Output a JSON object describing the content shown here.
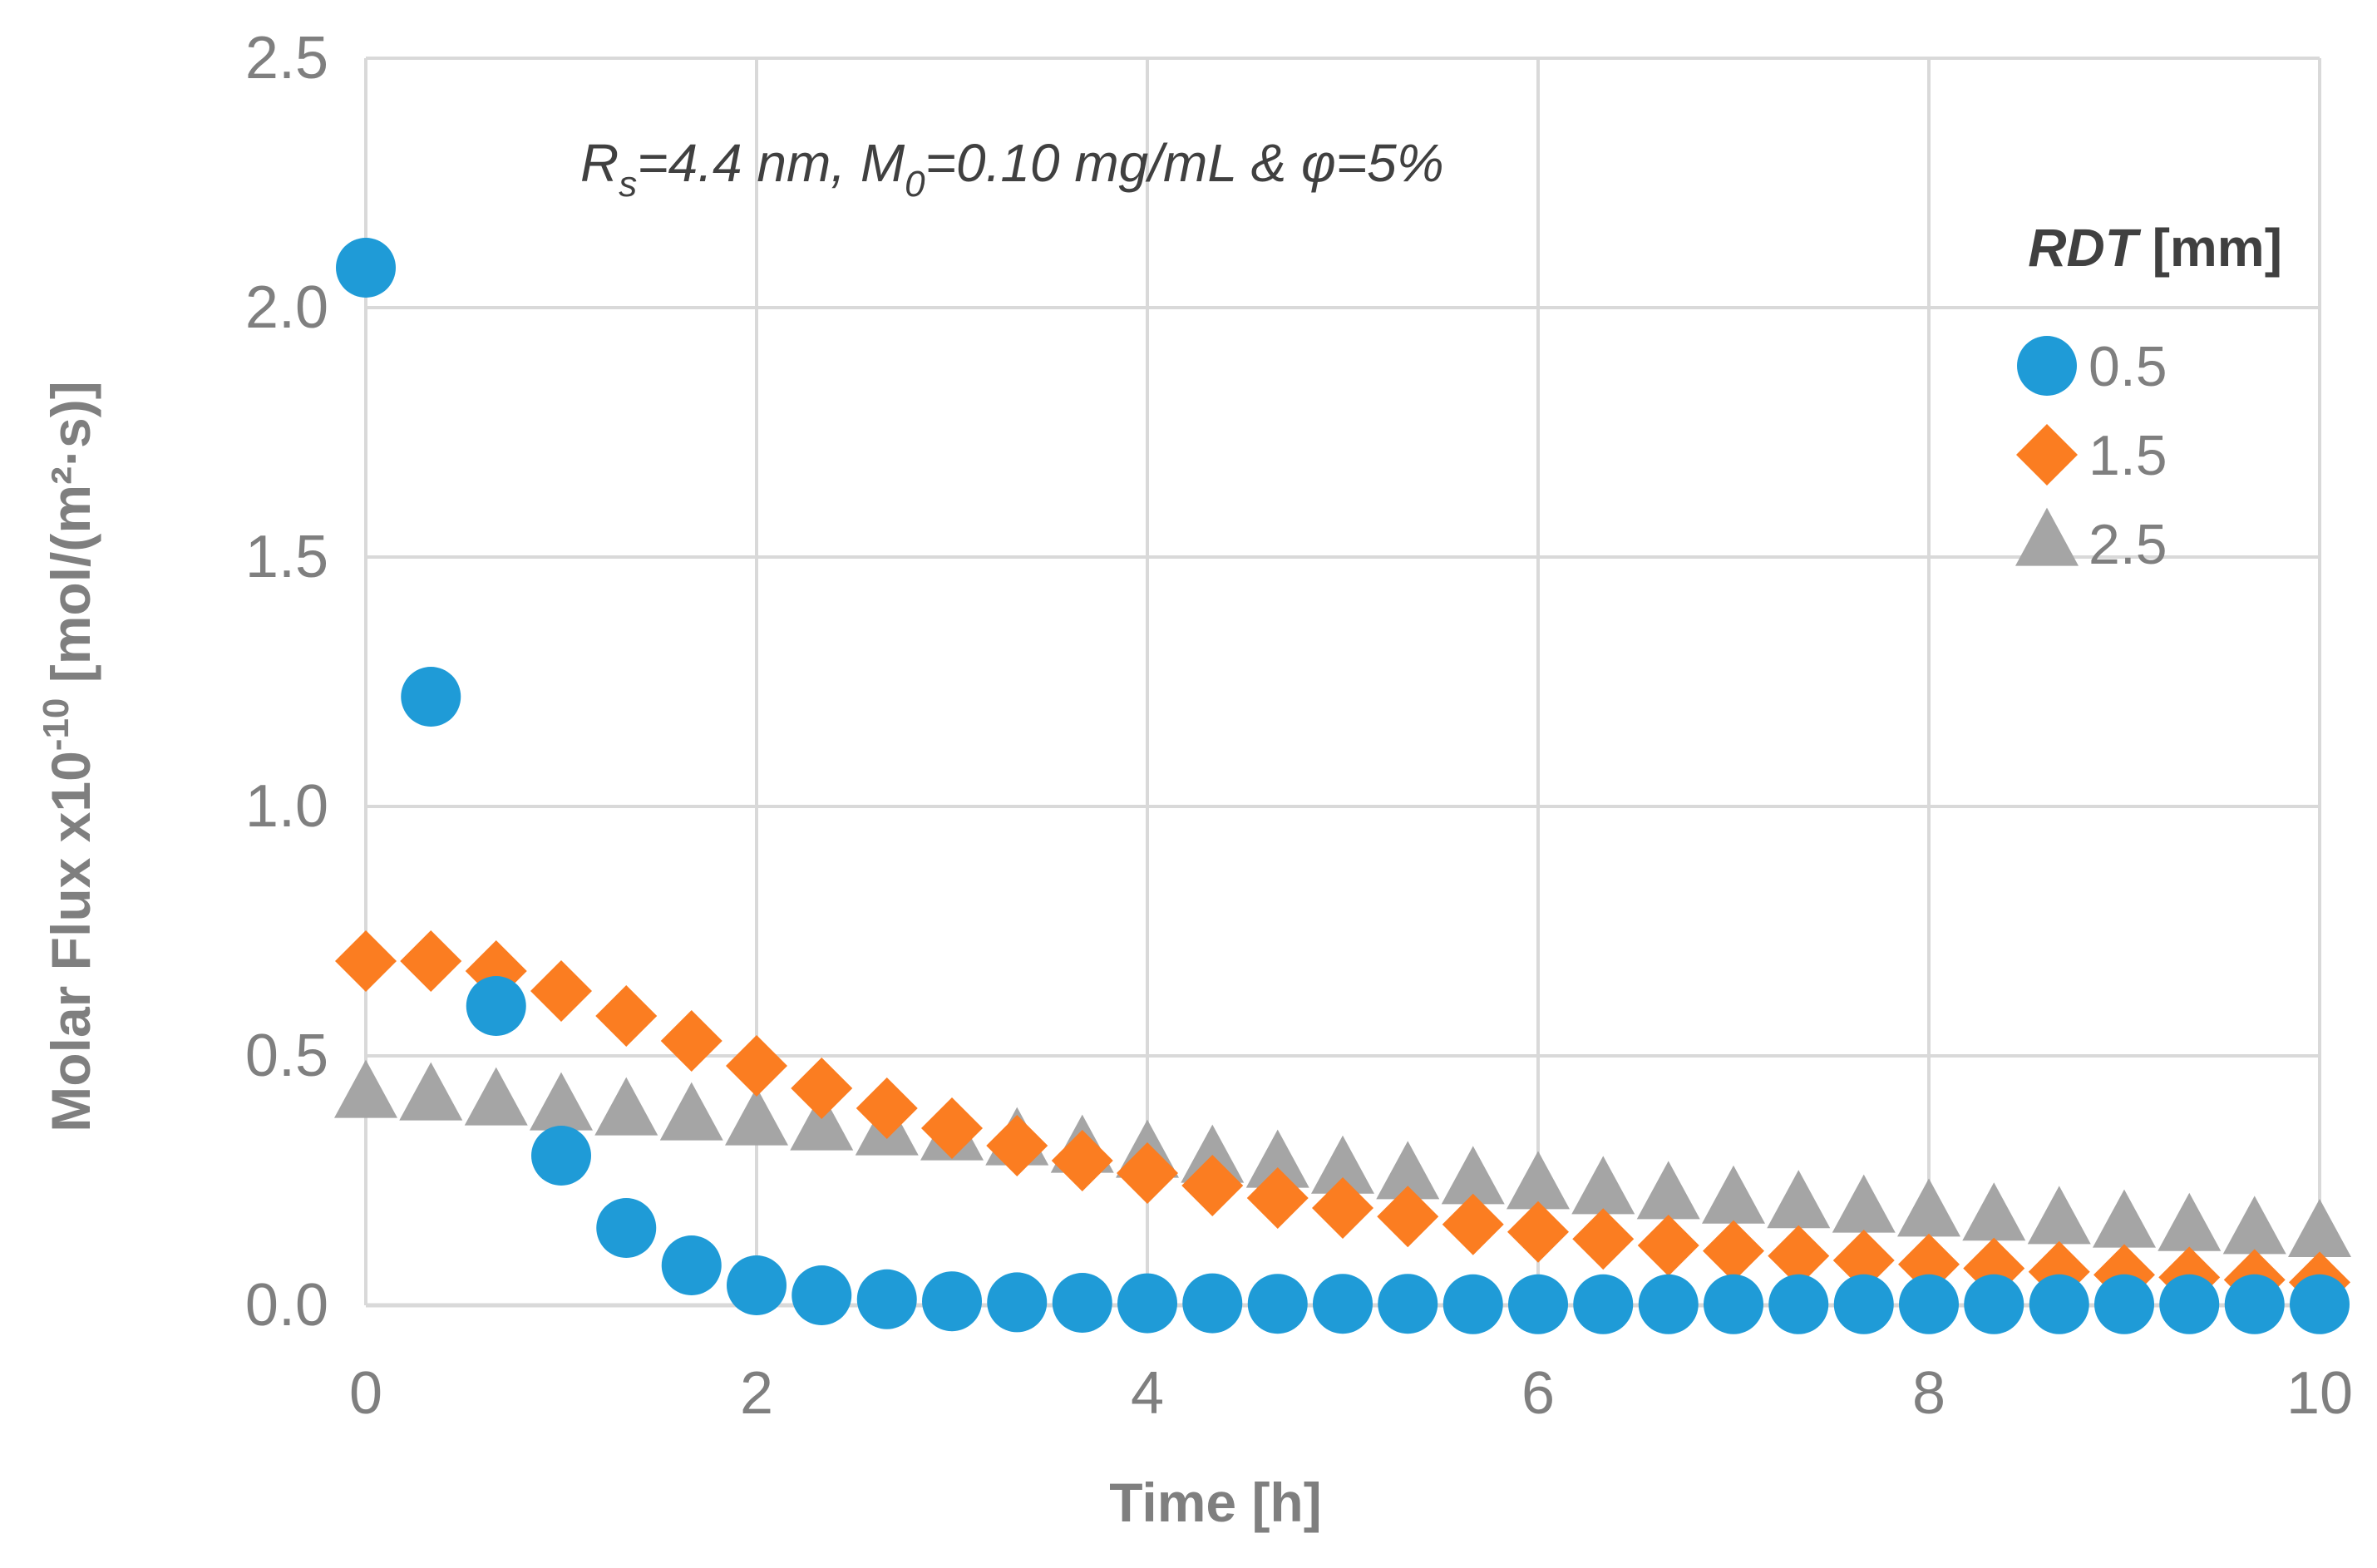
{
  "chart_data": {
    "type": "scatter",
    "xlabel": "Time [h]",
    "ylabel": {
      "prefix": "Molar Flux x10",
      "exponent": "-10",
      "suffix": " [mol/(m²·s)]"
    },
    "xlim": [
      0,
      10
    ],
    "ylim": [
      0,
      2.5
    ],
    "x_ticks": [
      0,
      2,
      4,
      6,
      8,
      10
    ],
    "y_ticks": [
      "0.0",
      "0.5",
      "1.0",
      "1.5",
      "2.0",
      "2.5"
    ],
    "grid": true,
    "annotation": {
      "r_symbol": "R",
      "r_sub": "s",
      "r_value": "=4.4 nm, ",
      "m_symbol": "M",
      "m_sub": "0",
      "m_value": "=0.10 mg/mL & φ=5%"
    },
    "legend": {
      "title_italic": "RDT",
      "title_rest": " [mm]",
      "placement": "top-right"
    },
    "x": [
      0,
      0.333,
      0.667,
      1,
      1.333,
      1.667,
      2,
      2.333,
      2.667,
      3,
      3.333,
      3.667,
      4,
      4.333,
      4.667,
      5,
      5.333,
      5.667,
      6,
      6.333,
      6.667,
      7,
      7.333,
      7.667,
      8,
      8.333,
      8.667,
      9,
      9.333,
      9.667,
      10
    ],
    "series": [
      {
        "name": "0.5",
        "marker": "circle",
        "color": "#1f9bd7",
        "values": [
          2.08,
          1.22,
          0.6,
          0.3,
          0.155,
          0.08,
          0.04,
          0.02,
          0.012,
          0.008,
          0.006,
          0.005,
          0.004,
          0.004,
          0.003,
          0.003,
          0.003,
          0.002,
          0.002,
          0.002,
          0.002,
          0.002,
          0.002,
          0.002,
          0.002,
          0.002,
          0.002,
          0.002,
          0.002,
          0.002,
          0.002
        ]
      },
      {
        "name": "1.5",
        "marker": "diamond",
        "color": "#fb7d21",
        "values": [
          0.69,
          0.69,
          0.67,
          0.63,
          0.58,
          0.53,
          0.48,
          0.435,
          0.395,
          0.355,
          0.32,
          0.29,
          0.265,
          0.24,
          0.215,
          0.195,
          0.178,
          0.162,
          0.147,
          0.133,
          0.12,
          0.109,
          0.099,
          0.09,
          0.082,
          0.074,
          0.067,
          0.061,
          0.056,
          0.051,
          0.046
        ]
      },
      {
        "name": "2.5",
        "marker": "triangle",
        "color": "#a5a5a5",
        "values": [
          0.42,
          0.415,
          0.405,
          0.395,
          0.385,
          0.375,
          0.365,
          0.355,
          0.345,
          0.335,
          0.325,
          0.31,
          0.3,
          0.29,
          0.28,
          0.268,
          0.257,
          0.247,
          0.237,
          0.227,
          0.217,
          0.208,
          0.199,
          0.19,
          0.182,
          0.174,
          0.167,
          0.16,
          0.153,
          0.147,
          0.141
        ]
      }
    ]
  }
}
